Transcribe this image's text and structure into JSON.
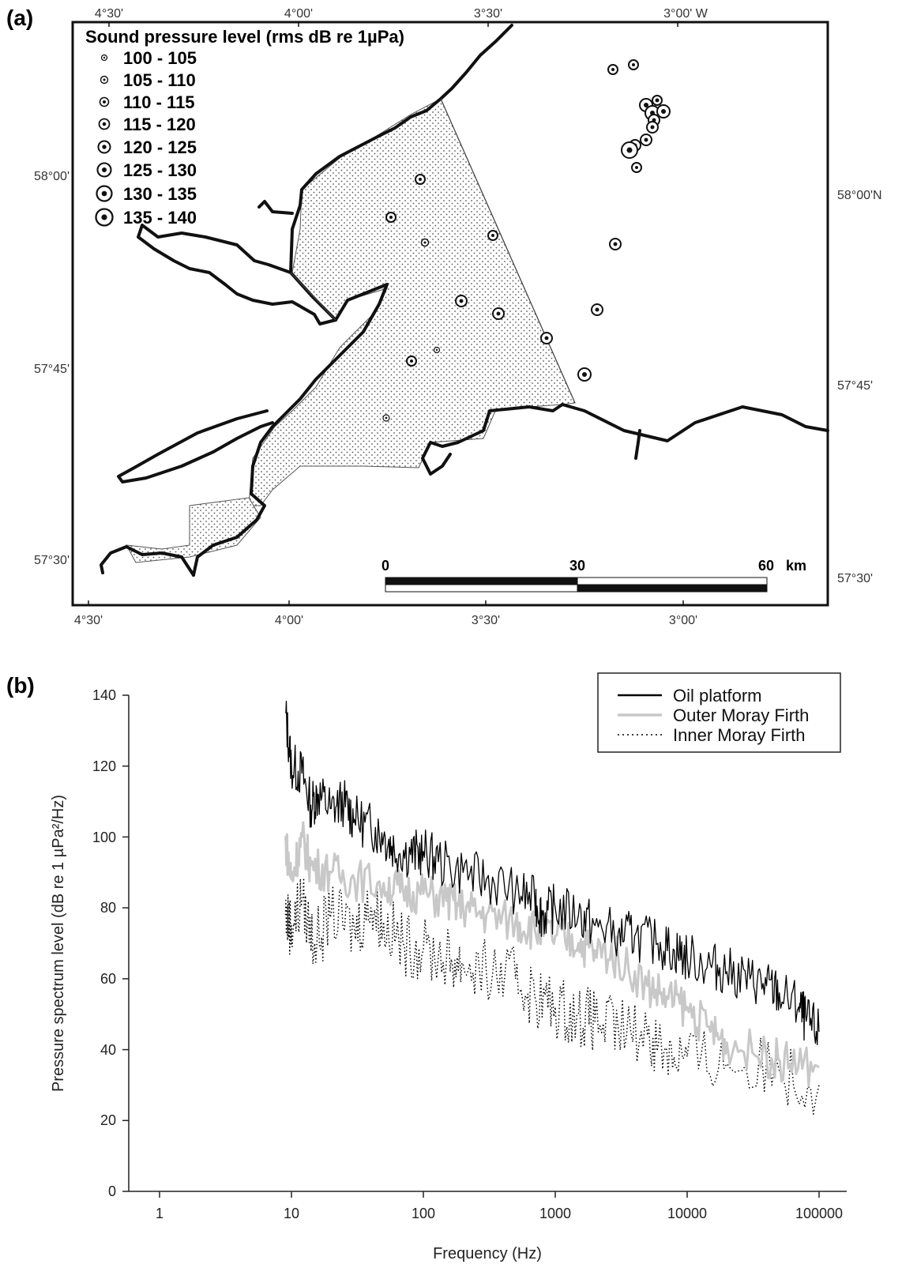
{
  "panel_a": {
    "label": "(a)",
    "legend_title": "Sound pressure level (rms dB re 1µPa)",
    "legend_items": [
      "100 - 105",
      "105 - 110",
      "110 - 115",
      "115 - 120",
      "120 - 125",
      "125 - 130",
      "130 - 135",
      "135 - 140"
    ],
    "top_lon_labels": [
      "4°30'",
      "4°00'",
      "3°30'",
      "3°00' W"
    ],
    "bottom_lon_labels": [
      "4°30'",
      "4°00'",
      "3°30'",
      "3°00'"
    ],
    "left_lat_labels": [
      "58°00'",
      "57°45'",
      "57°30'"
    ],
    "right_lat_labels": [
      "58°00'N",
      "57°45'",
      "57°30'"
    ],
    "scale_bar": {
      "ticks": [
        "0",
        "30",
        "60"
      ],
      "unit": "km"
    },
    "colors": {
      "land_outline": "#111111",
      "shaded_area": "#ffffff",
      "stipple": "#555555"
    }
  },
  "panel_b": {
    "label": "(b)",
    "legend": [
      "Oil platform",
      "Outer Moray Firth",
      "Inner Moray Firth"
    ],
    "y_ticks": [
      "0",
      "20",
      "40",
      "60",
      "80",
      "100",
      "120",
      "140"
    ],
    "x_ticks": [
      "1",
      "10",
      "100",
      "1000",
      "10000",
      "100000"
    ]
  },
  "chart_data": {
    "type": "line",
    "xlabel": "Frequency (Hz)",
    "ylabel": "Pressure spectrum level (dB re 1 µPa²/Hz)",
    "x_scale": "log",
    "xlim": [
      0.5,
      150000
    ],
    "ylim": [
      0,
      140
    ],
    "grid": false,
    "legend_position": "top-right",
    "series": [
      {
        "name": "Oil platform",
        "color": "#000000",
        "style": "solid",
        "points": [
          [
            9,
            135
          ],
          [
            10,
            120
          ],
          [
            12,
            118
          ],
          [
            14,
            109
          ],
          [
            16,
            112
          ],
          [
            20,
            108
          ],
          [
            25,
            110
          ],
          [
            30,
            105
          ],
          [
            40,
            103
          ],
          [
            50,
            100
          ],
          [
            60,
            97
          ],
          [
            80,
            95
          ],
          [
            100,
            96
          ],
          [
            130,
            93
          ],
          [
            200,
            90
          ],
          [
            300,
            88
          ],
          [
            500,
            85
          ],
          [
            700,
            82
          ],
          [
            800,
            78
          ],
          [
            1000,
            80
          ],
          [
            1500,
            78
          ],
          [
            2000,
            75
          ],
          [
            3000,
            73
          ],
          [
            4000,
            72
          ],
          [
            6000,
            70
          ],
          [
            8000,
            68
          ],
          [
            10000,
            66
          ],
          [
            15000,
            64
          ],
          [
            20000,
            62
          ],
          [
            30000,
            60
          ],
          [
            40000,
            58
          ],
          [
            50000,
            56
          ],
          [
            70000,
            52
          ],
          [
            80000,
            48
          ],
          [
            100000,
            45
          ]
        ]
      },
      {
        "name": "Outer Moray Firth",
        "color": "#c8c8c8",
        "style": "solid",
        "points": [
          [
            9,
            99
          ],
          [
            10,
            88
          ],
          [
            12,
            100
          ],
          [
            14,
            92
          ],
          [
            20,
            90
          ],
          [
            30,
            88
          ],
          [
            50,
            87
          ],
          [
            70,
            85
          ],
          [
            100,
            84
          ],
          [
            150,
            82
          ],
          [
            200,
            80
          ],
          [
            300,
            78
          ],
          [
            500,
            76
          ],
          [
            700,
            74
          ],
          [
            1000,
            72
          ],
          [
            1500,
            70
          ],
          [
            2000,
            68
          ],
          [
            3000,
            66
          ],
          [
            5000,
            58
          ],
          [
            7000,
            55
          ],
          [
            10000,
            52
          ],
          [
            15000,
            45
          ],
          [
            20000,
            42
          ],
          [
            40000,
            38
          ],
          [
            60000,
            36
          ],
          [
            100000,
            35
          ]
        ]
      },
      {
        "name": "Inner Moray Firth",
        "color": "#000000",
        "style": "dotted",
        "points": [
          [
            9,
            78
          ],
          [
            10,
            75
          ],
          [
            12,
            82
          ],
          [
            15,
            70
          ],
          [
            20,
            78
          ],
          [
            30,
            74
          ],
          [
            40,
            80
          ],
          [
            50,
            76
          ],
          [
            70,
            70
          ],
          [
            100,
            68
          ],
          [
            150,
            66
          ],
          [
            200,
            64
          ],
          [
            300,
            62
          ],
          [
            500,
            60
          ],
          [
            700,
            55
          ],
          [
            1000,
            52
          ],
          [
            1500,
            50
          ],
          [
            2000,
            48
          ],
          [
            3000,
            46
          ],
          [
            5000,
            44
          ],
          [
            7000,
            40
          ],
          [
            10000,
            38
          ],
          [
            20000,
            36
          ],
          [
            50000,
            34
          ],
          [
            100000,
            30
          ]
        ]
      }
    ]
  }
}
